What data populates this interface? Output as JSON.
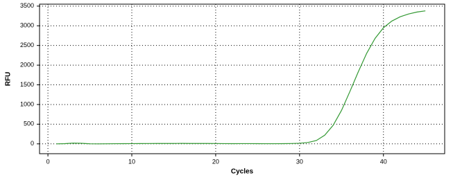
{
  "chart_data": {
    "type": "line",
    "xlabel": "Cycles",
    "ylabel": "RFU",
    "x": [
      1,
      2,
      3,
      4,
      5,
      6,
      7,
      8,
      9,
      10,
      11,
      12,
      13,
      14,
      15,
      16,
      17,
      18,
      19,
      20,
      21,
      22,
      23,
      24,
      25,
      26,
      27,
      28,
      29,
      30,
      31,
      32,
      33,
      34,
      35,
      36,
      37,
      38,
      39,
      40,
      41,
      42,
      43,
      44,
      45
    ],
    "values": [
      0,
      5,
      18,
      14,
      2,
      0,
      2,
      4,
      5,
      6,
      7,
      8,
      9,
      9,
      10,
      11,
      10,
      9,
      9,
      8,
      6,
      5,
      6,
      6,
      5,
      4,
      4,
      5,
      8,
      15,
      35,
      85,
      220,
      470,
      850,
      1330,
      1830,
      2300,
      2680,
      2950,
      3120,
      3230,
      3300,
      3350,
      3380
    ],
    "color": "#339933",
    "xlim": [
      -1,
      47.3
    ],
    "ylim": [
      -250,
      3550
    ],
    "xticks": [
      0,
      10,
      20,
      30,
      40
    ],
    "yticks": [
      0,
      500,
      1000,
      1500,
      2000,
      2500,
      3000,
      3500
    ],
    "grid": true
  }
}
